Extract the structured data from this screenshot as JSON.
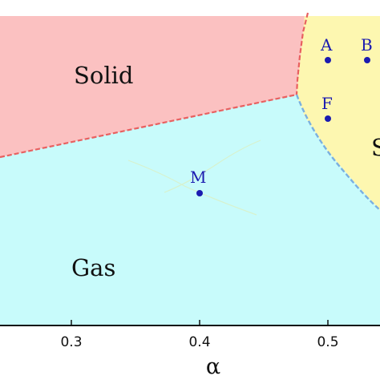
{
  "diagram": {
    "regions": {
      "solid": "Solid",
      "gas": "Gas",
      "right_partial": "S"
    },
    "points": {
      "A": "A",
      "B": "B",
      "F": "F",
      "M": "M"
    },
    "axis": {
      "xlabel": "α",
      "ticks": [
        "0.3",
        "0.4",
        "0.5"
      ]
    },
    "colors": {
      "solid_region": "#fbc1c1",
      "gas_region": "#c8fbfb",
      "right_region": "#fdf7b0",
      "solid_boundary": "#e86060",
      "right_boundary": "#7ab0e0",
      "point_color": "#1b1bb0"
    }
  }
}
